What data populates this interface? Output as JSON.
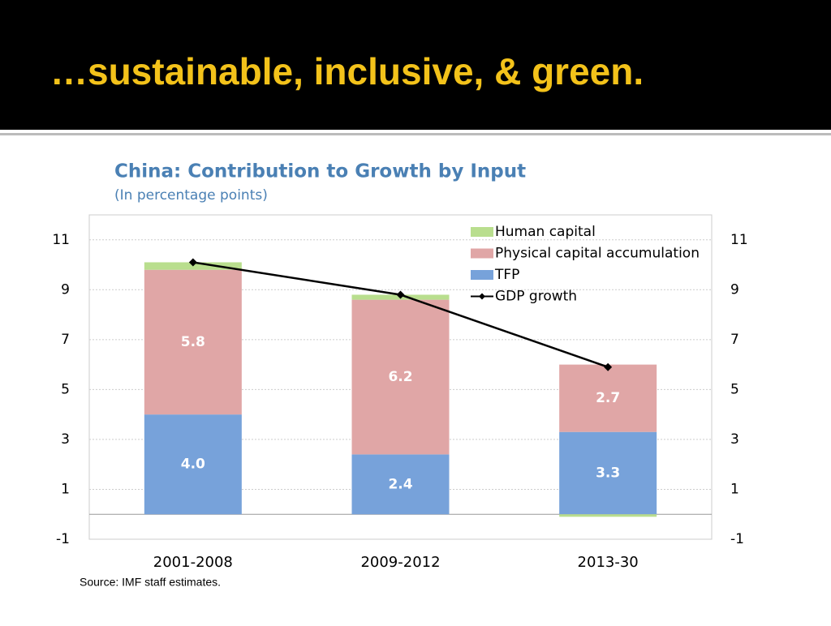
{
  "slide": {
    "title": "…sustainable, inclusive, & green."
  },
  "chart_data": {
    "type": "bar",
    "stacked": true,
    "title": "China: Contribution to Growth by Input",
    "subtitle": "(In percentage points)",
    "source": "Source: IMF staff estimates.",
    "categories": [
      "2001-2008",
      "2009-2012",
      "2013-30"
    ],
    "series": [
      {
        "name": "Human capital",
        "color": "#b9de8e",
        "values": [
          0.3,
          0.2,
          -0.1
        ]
      },
      {
        "name": "Physical capital accumulation",
        "color": "#e0a6a6",
        "values": [
          5.8,
          6.2,
          2.7
        ],
        "data_labels": true
      },
      {
        "name": "TFP",
        "color": "#77a2da",
        "values": [
          4.0,
          2.4,
          3.3
        ],
        "value_labels": [
          "4.0",
          "2.4",
          "3.3"
        ],
        "data_labels": true
      },
      {
        "name": "GDP growth",
        "type": "line",
        "color": "#000000",
        "values": [
          10.1,
          8.8,
          5.9
        ]
      }
    ],
    "ylim": [
      -1,
      12
    ],
    "yticks": [
      -1,
      1,
      3,
      5,
      7,
      9,
      11
    ],
    "y2lim": [
      -1,
      12
    ],
    "y2ticks": [
      -1,
      1,
      3,
      5,
      7,
      9,
      11
    ],
    "grid": true,
    "legend": "top-right"
  }
}
